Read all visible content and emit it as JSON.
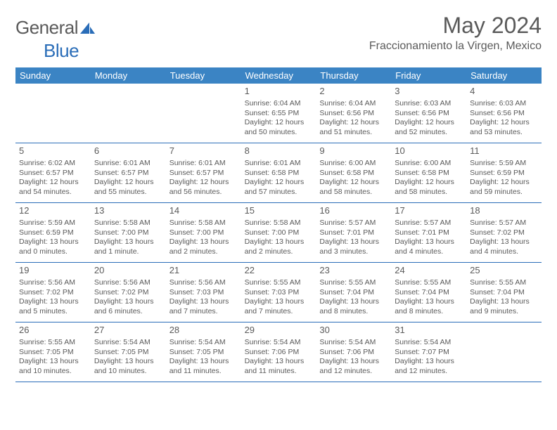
{
  "brand": {
    "part1": "General",
    "part2": "Blue"
  },
  "title": "May 2024",
  "location": "Fraccionamiento la Virgen, Mexico",
  "colors": {
    "header_bg": "#3b84c4",
    "header_text": "#ffffff",
    "rule": "#2a6db8",
    "text": "#5a5a5a",
    "brand_blue": "#2a6db8"
  },
  "dayNames": [
    "Sunday",
    "Monday",
    "Tuesday",
    "Wednesday",
    "Thursday",
    "Friday",
    "Saturday"
  ],
  "weeks": [
    [
      {
        "day": "",
        "sunrise": "",
        "sunset": "",
        "daylight": ""
      },
      {
        "day": "",
        "sunrise": "",
        "sunset": "",
        "daylight": ""
      },
      {
        "day": "",
        "sunrise": "",
        "sunset": "",
        "daylight": ""
      },
      {
        "day": "1",
        "sunrise": "Sunrise: 6:04 AM",
        "sunset": "Sunset: 6:55 PM",
        "daylight": "Daylight: 12 hours and 50 minutes."
      },
      {
        "day": "2",
        "sunrise": "Sunrise: 6:04 AM",
        "sunset": "Sunset: 6:56 PM",
        "daylight": "Daylight: 12 hours and 51 minutes."
      },
      {
        "day": "3",
        "sunrise": "Sunrise: 6:03 AM",
        "sunset": "Sunset: 6:56 PM",
        "daylight": "Daylight: 12 hours and 52 minutes."
      },
      {
        "day": "4",
        "sunrise": "Sunrise: 6:03 AM",
        "sunset": "Sunset: 6:56 PM",
        "daylight": "Daylight: 12 hours and 53 minutes."
      }
    ],
    [
      {
        "day": "5",
        "sunrise": "Sunrise: 6:02 AM",
        "sunset": "Sunset: 6:57 PM",
        "daylight": "Daylight: 12 hours and 54 minutes."
      },
      {
        "day": "6",
        "sunrise": "Sunrise: 6:01 AM",
        "sunset": "Sunset: 6:57 PM",
        "daylight": "Daylight: 12 hours and 55 minutes."
      },
      {
        "day": "7",
        "sunrise": "Sunrise: 6:01 AM",
        "sunset": "Sunset: 6:57 PM",
        "daylight": "Daylight: 12 hours and 56 minutes."
      },
      {
        "day": "8",
        "sunrise": "Sunrise: 6:01 AM",
        "sunset": "Sunset: 6:58 PM",
        "daylight": "Daylight: 12 hours and 57 minutes."
      },
      {
        "day": "9",
        "sunrise": "Sunrise: 6:00 AM",
        "sunset": "Sunset: 6:58 PM",
        "daylight": "Daylight: 12 hours and 58 minutes."
      },
      {
        "day": "10",
        "sunrise": "Sunrise: 6:00 AM",
        "sunset": "Sunset: 6:58 PM",
        "daylight": "Daylight: 12 hours and 58 minutes."
      },
      {
        "day": "11",
        "sunrise": "Sunrise: 5:59 AM",
        "sunset": "Sunset: 6:59 PM",
        "daylight": "Daylight: 12 hours and 59 minutes."
      }
    ],
    [
      {
        "day": "12",
        "sunrise": "Sunrise: 5:59 AM",
        "sunset": "Sunset: 6:59 PM",
        "daylight": "Daylight: 13 hours and 0 minutes."
      },
      {
        "day": "13",
        "sunrise": "Sunrise: 5:58 AM",
        "sunset": "Sunset: 7:00 PM",
        "daylight": "Daylight: 13 hours and 1 minute."
      },
      {
        "day": "14",
        "sunrise": "Sunrise: 5:58 AM",
        "sunset": "Sunset: 7:00 PM",
        "daylight": "Daylight: 13 hours and 2 minutes."
      },
      {
        "day": "15",
        "sunrise": "Sunrise: 5:58 AM",
        "sunset": "Sunset: 7:00 PM",
        "daylight": "Daylight: 13 hours and 2 minutes."
      },
      {
        "day": "16",
        "sunrise": "Sunrise: 5:57 AM",
        "sunset": "Sunset: 7:01 PM",
        "daylight": "Daylight: 13 hours and 3 minutes."
      },
      {
        "day": "17",
        "sunrise": "Sunrise: 5:57 AM",
        "sunset": "Sunset: 7:01 PM",
        "daylight": "Daylight: 13 hours and 4 minutes."
      },
      {
        "day": "18",
        "sunrise": "Sunrise: 5:57 AM",
        "sunset": "Sunset: 7:02 PM",
        "daylight": "Daylight: 13 hours and 4 minutes."
      }
    ],
    [
      {
        "day": "19",
        "sunrise": "Sunrise: 5:56 AM",
        "sunset": "Sunset: 7:02 PM",
        "daylight": "Daylight: 13 hours and 5 minutes."
      },
      {
        "day": "20",
        "sunrise": "Sunrise: 5:56 AM",
        "sunset": "Sunset: 7:02 PM",
        "daylight": "Daylight: 13 hours and 6 minutes."
      },
      {
        "day": "21",
        "sunrise": "Sunrise: 5:56 AM",
        "sunset": "Sunset: 7:03 PM",
        "daylight": "Daylight: 13 hours and 7 minutes."
      },
      {
        "day": "22",
        "sunrise": "Sunrise: 5:55 AM",
        "sunset": "Sunset: 7:03 PM",
        "daylight": "Daylight: 13 hours and 7 minutes."
      },
      {
        "day": "23",
        "sunrise": "Sunrise: 5:55 AM",
        "sunset": "Sunset: 7:04 PM",
        "daylight": "Daylight: 13 hours and 8 minutes."
      },
      {
        "day": "24",
        "sunrise": "Sunrise: 5:55 AM",
        "sunset": "Sunset: 7:04 PM",
        "daylight": "Daylight: 13 hours and 8 minutes."
      },
      {
        "day": "25",
        "sunrise": "Sunrise: 5:55 AM",
        "sunset": "Sunset: 7:04 PM",
        "daylight": "Daylight: 13 hours and 9 minutes."
      }
    ],
    [
      {
        "day": "26",
        "sunrise": "Sunrise: 5:55 AM",
        "sunset": "Sunset: 7:05 PM",
        "daylight": "Daylight: 13 hours and 10 minutes."
      },
      {
        "day": "27",
        "sunrise": "Sunrise: 5:54 AM",
        "sunset": "Sunset: 7:05 PM",
        "daylight": "Daylight: 13 hours and 10 minutes."
      },
      {
        "day": "28",
        "sunrise": "Sunrise: 5:54 AM",
        "sunset": "Sunset: 7:05 PM",
        "daylight": "Daylight: 13 hours and 11 minutes."
      },
      {
        "day": "29",
        "sunrise": "Sunrise: 5:54 AM",
        "sunset": "Sunset: 7:06 PM",
        "daylight": "Daylight: 13 hours and 11 minutes."
      },
      {
        "day": "30",
        "sunrise": "Sunrise: 5:54 AM",
        "sunset": "Sunset: 7:06 PM",
        "daylight": "Daylight: 13 hours and 12 minutes."
      },
      {
        "day": "31",
        "sunrise": "Sunrise: 5:54 AM",
        "sunset": "Sunset: 7:07 PM",
        "daylight": "Daylight: 13 hours and 12 minutes."
      },
      {
        "day": "",
        "sunrise": "",
        "sunset": "",
        "daylight": ""
      }
    ]
  ]
}
